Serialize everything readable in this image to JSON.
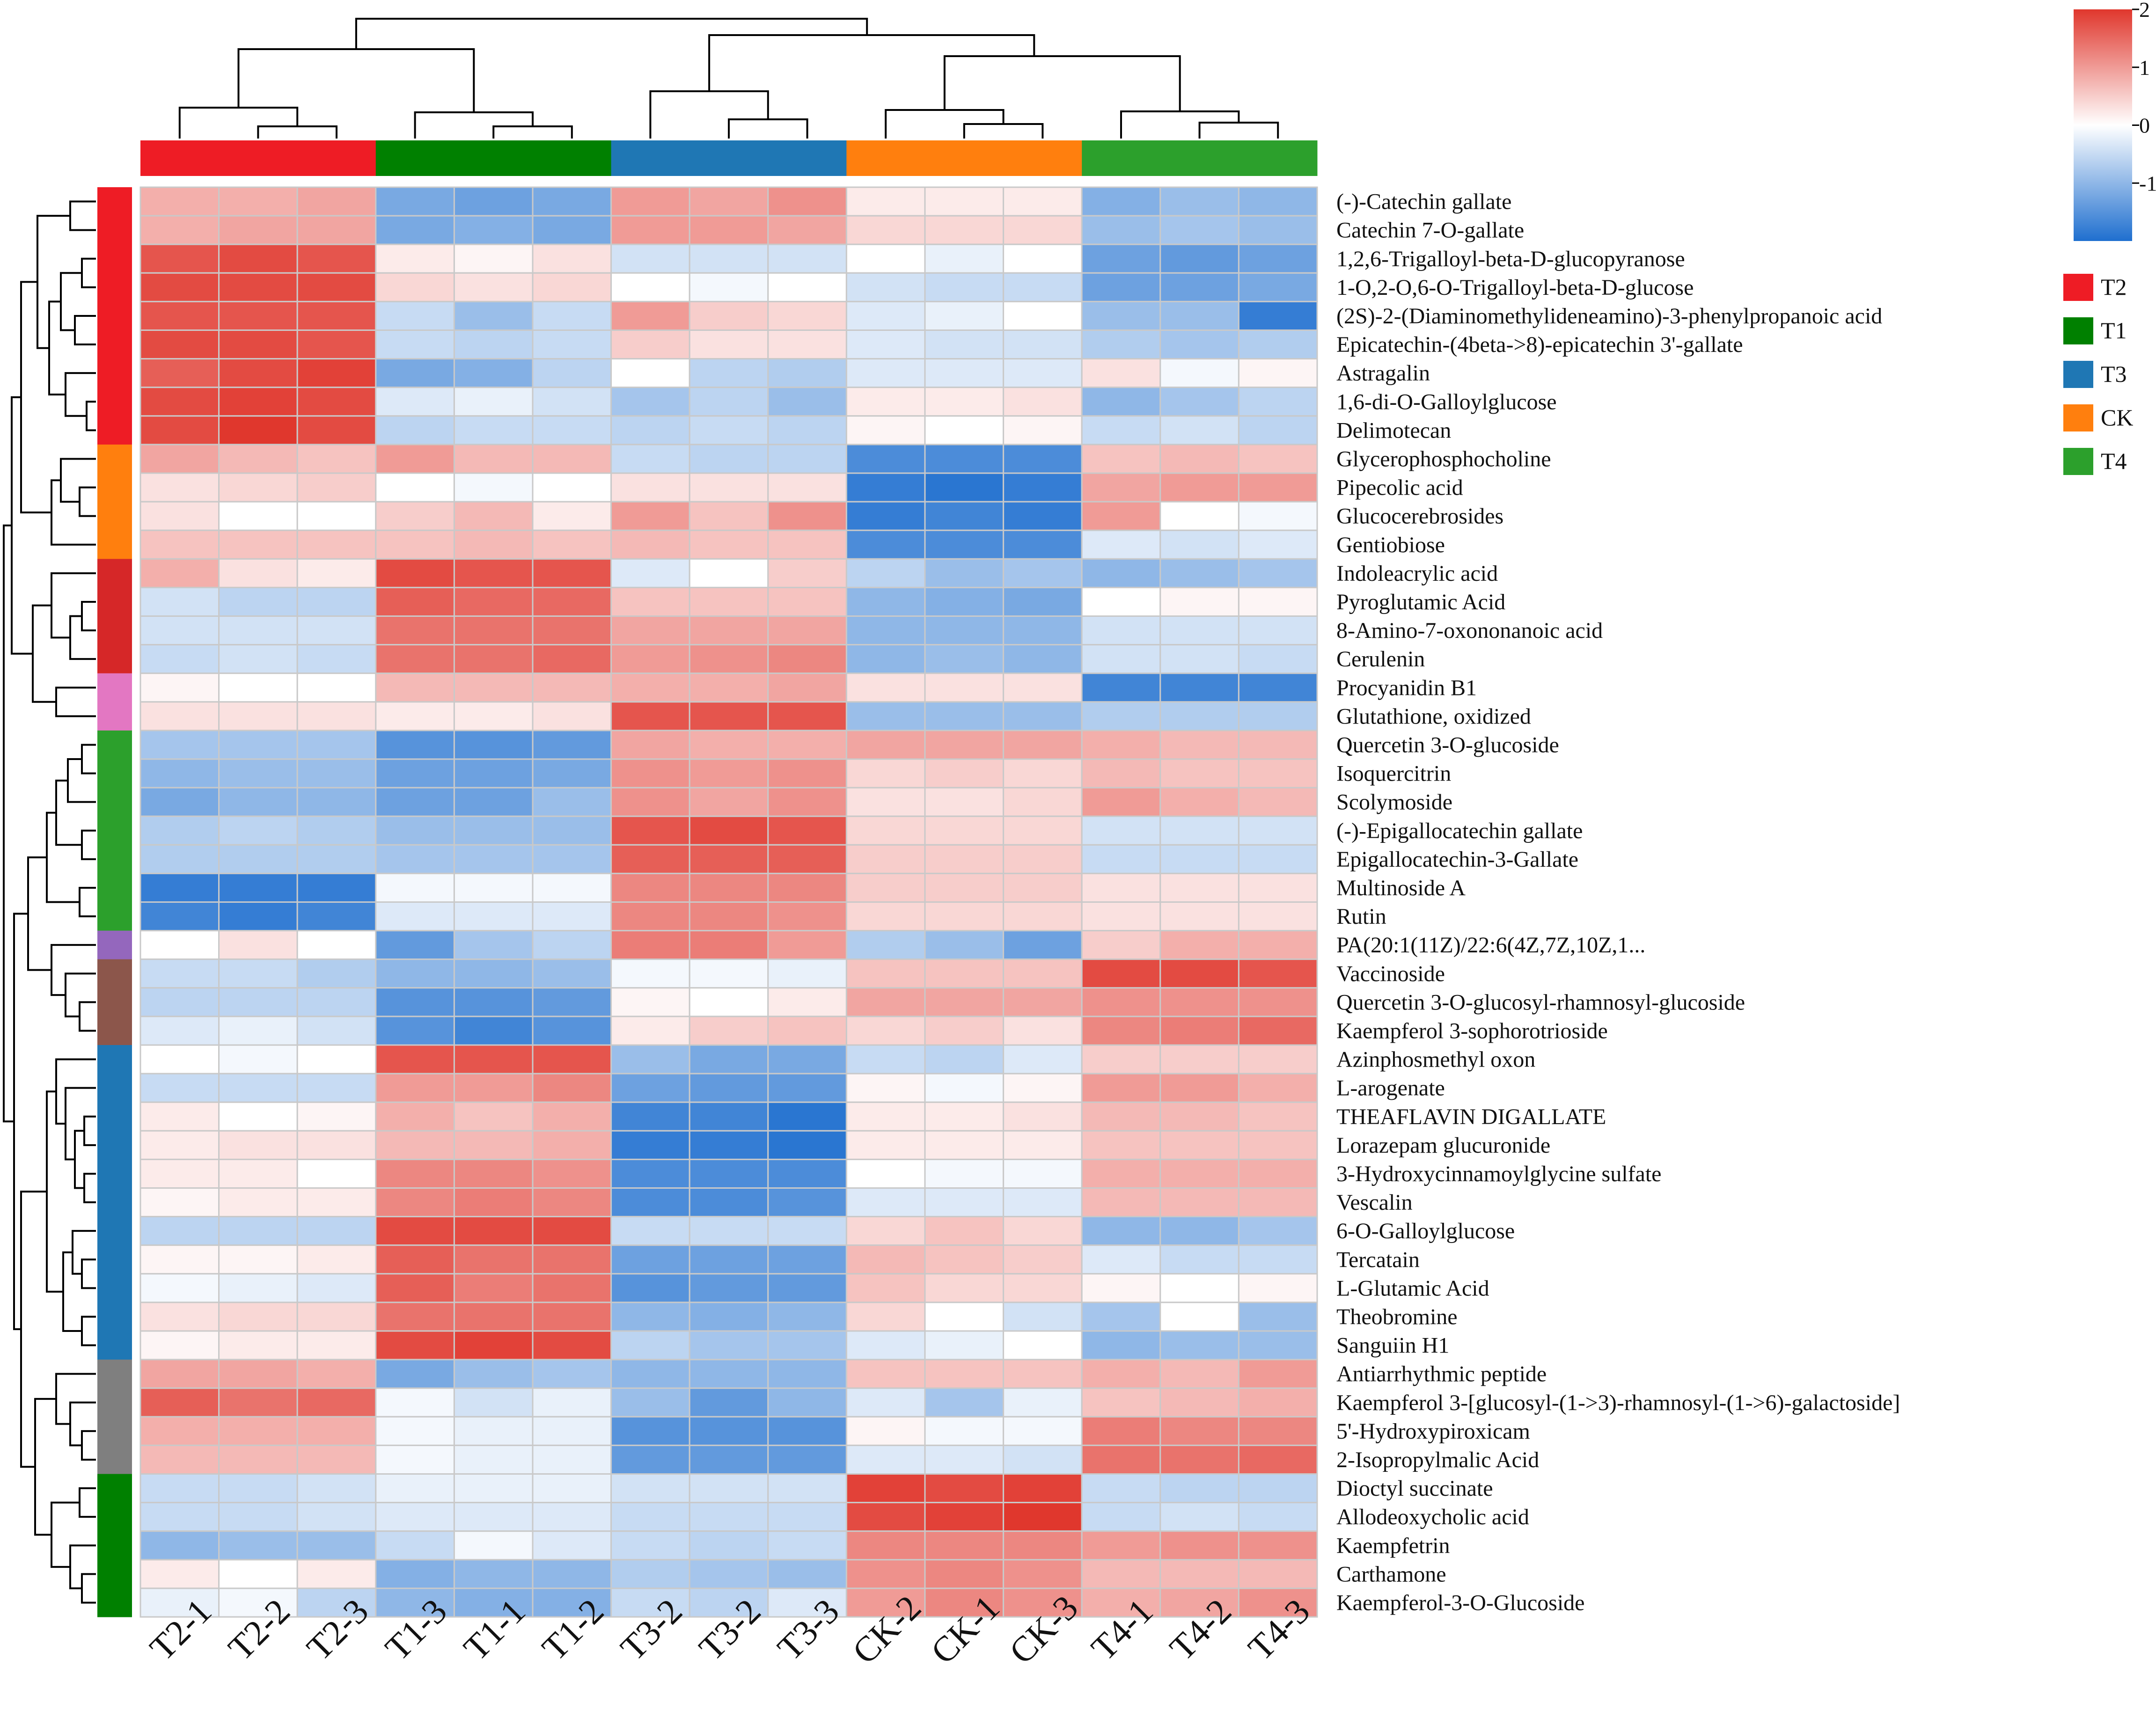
{
  "chart_data": {
    "type": "heatmap",
    "title": "",
    "columns": [
      "T2-1",
      "T2-2",
      "T2-3",
      "T1-3",
      "T1-1",
      "T1-2",
      "T3-2",
      "T3-2",
      "T3-3",
      "CK-2",
      "CK-1",
      "CK-3",
      "T4-1",
      "T4-2",
      "T4-3"
    ],
    "column_groups": [
      "T2",
      "T2",
      "T2",
      "T1",
      "T1",
      "T1",
      "T3",
      "T3",
      "T3",
      "CK",
      "CK",
      "CK",
      "T4",
      "T4",
      "T4"
    ],
    "rows": [
      "(-)-Catechin gallate",
      "Catechin 7-O-gallate",
      "1,2,6-Trigalloyl-beta-D-glucopyranose",
      "1-O,2-O,6-O-Trigalloyl-beta-D-glucose",
      "(2S)-2-(Diaminomethylideneamino)-3-phenylpropanoic acid",
      "Epicatechin-(4beta->8)-epicatechin 3'-gallate",
      "Astragalin",
      "1,6-di-O-Galloylglucose",
      "Delimotecan",
      "Glycerophosphocholine",
      "Pipecolic acid",
      "Glucocerebrosides",
      "Gentiobiose",
      "Indoleacrylic acid",
      "Pyroglutamic Acid",
      "8-Amino-7-oxononanoic acid",
      "Cerulenin",
      "Procyanidin B1",
      "Glutathione, oxidized",
      "Quercetin 3-O-glucoside",
      "Isoquercitrin",
      "Scolymoside",
      "(-)-Epigallocatechin gallate",
      "Epigallocatechin-3-Gallate",
      "Multinoside A",
      "Rutin",
      "PA(20:1(11Z)/22:6(4Z,7Z,10Z,1...",
      "Vaccinoside",
      "Quercetin 3-O-glucosyl-rhamnosyl-glucoside",
      "Kaempferol 3-sophorotrioside",
      "Azinphosmethyl oxon",
      "L-arogenate",
      "THEAFLAVIN DIGALLATE",
      "Lorazepam glucuronide",
      "3-Hydroxycinnamoylglycine sulfate",
      "Vescalin",
      "6-O-Galloylglucose",
      "Tercatain",
      "L-Glutamic Acid",
      "Theobromine",
      "Sanguiin H1",
      "Antiarrhythmic peptide",
      "Kaempferol 3-[glucosyl-(1->3)-rhamnosyl-(1->6)-galactoside]",
      "5'-Hydroxypiroxicam",
      "2-Isopropylmalic Acid",
      "Dioctyl succinate",
      "Allodeoxycholic acid",
      "Kaempfetrin",
      "Carthamone",
      "Kaempferol-3-O-Glucoside"
    ],
    "row_cluster_colors": [
      "#ee1c25",
      "#ee1c25",
      "#ee1c25",
      "#ee1c25",
      "#ee1c25",
      "#ee1c25",
      "#ee1c25",
      "#ee1c25",
      "#ee1c25",
      "#ff7f0e",
      "#ff7f0e",
      "#ff7f0e",
      "#ff7f0e",
      "#d62728",
      "#d62728",
      "#d62728",
      "#d62728",
      "#e377c2",
      "#e377c2",
      "#2ca02c",
      "#2ca02c",
      "#2ca02c",
      "#2ca02c",
      "#2ca02c",
      "#2ca02c",
      "#2ca02c",
      "#9467bd",
      "#8c564b",
      "#8c564b",
      "#8c564b",
      "#1f77b4",
      "#1f77b4",
      "#1f77b4",
      "#1f77b4",
      "#1f77b4",
      "#1f77b4",
      "#1f77b4",
      "#1f77b4",
      "#1f77b4",
      "#1f77b4",
      "#1f77b4",
      "#7f7f7f",
      "#7f7f7f",
      "#7f7f7f",
      "#7f7f7f",
      "#008000",
      "#008000",
      "#008000",
      "#008000",
      "#008000"
    ],
    "values": [
      [
        0.8,
        0.8,
        0.9,
        -1.2,
        -1.3,
        -1.2,
        1.0,
        0.9,
        1.1,
        0.2,
        0.2,
        0.2,
        -1.1,
        -0.9,
        -1.0
      ],
      [
        0.8,
        0.9,
        0.9,
        -1.2,
        -1.1,
        -1.2,
        1.0,
        1.0,
        0.9,
        0.4,
        0.4,
        0.4,
        -0.9,
        -0.8,
        -0.9
      ],
      [
        1.7,
        1.8,
        1.7,
        0.2,
        0.1,
        0.3,
        -0.4,
        -0.4,
        -0.4,
        0.0,
        -0.2,
        0.0,
        -1.3,
        -1.4,
        -1.3
      ],
      [
        1.8,
        1.8,
        1.8,
        0.4,
        0.3,
        0.4,
        0.0,
        -0.1,
        0.0,
        -0.4,
        -0.5,
        -0.5,
        -1.3,
        -1.3,
        -1.2
      ],
      [
        1.7,
        1.7,
        1.7,
        -0.5,
        -0.9,
        -0.5,
        1.0,
        0.5,
        0.4,
        -0.3,
        -0.2,
        0.0,
        -0.9,
        -0.9,
        -1.8
      ],
      [
        1.8,
        1.8,
        1.7,
        -0.5,
        -0.6,
        -0.5,
        0.5,
        0.3,
        0.3,
        -0.3,
        -0.4,
        -0.4,
        -0.7,
        -0.8,
        -0.7
      ],
      [
        1.6,
        1.8,
        1.9,
        -1.2,
        -1.1,
        -0.6,
        0.0,
        -0.6,
        -0.7,
        -0.3,
        -0.3,
        -0.3,
        0.3,
        -0.1,
        0.1
      ],
      [
        1.8,
        1.9,
        1.8,
        -0.3,
        -0.2,
        -0.4,
        -0.8,
        -0.6,
        -0.9,
        0.2,
        0.2,
        0.3,
        -1.0,
        -0.8,
        -0.6
      ],
      [
        1.8,
        2.0,
        1.8,
        -0.6,
        -0.5,
        -0.5,
        -0.6,
        -0.5,
        -0.6,
        0.1,
        0.0,
        0.1,
        -0.5,
        -0.4,
        -0.6
      ],
      [
        0.9,
        0.7,
        0.6,
        1.0,
        0.7,
        0.7,
        -0.5,
        -0.6,
        -0.6,
        -1.6,
        -1.6,
        -1.6,
        0.6,
        0.7,
        0.6
      ],
      [
        0.3,
        0.4,
        0.5,
        0.0,
        -0.1,
        0.0,
        0.3,
        0.3,
        0.3,
        -1.8,
        -1.9,
        -1.8,
        0.9,
        1.0,
        1.0
      ],
      [
        0.3,
        0.0,
        0.0,
        0.5,
        0.7,
        0.2,
        1.0,
        0.6,
        1.1,
        -1.8,
        -1.7,
        -1.8,
        1.0,
        0.0,
        -0.1
      ],
      [
        0.6,
        0.6,
        0.6,
        0.6,
        0.7,
        0.6,
        0.7,
        0.6,
        0.6,
        -1.6,
        -1.6,
        -1.6,
        -0.3,
        -0.4,
        -0.3
      ],
      [
        0.8,
        0.3,
        0.2,
        1.8,
        1.7,
        1.7,
        -0.3,
        0.0,
        0.5,
        -0.6,
        -0.9,
        -0.8,
        -1.0,
        -0.9,
        -0.8
      ],
      [
        -0.4,
        -0.6,
        -0.6,
        1.6,
        1.5,
        1.5,
        0.6,
        0.6,
        0.6,
        -1.0,
        -1.1,
        -1.2,
        0.0,
        0.1,
        0.1
      ],
      [
        -0.4,
        -0.4,
        -0.4,
        1.4,
        1.4,
        1.4,
        0.9,
        0.9,
        0.9,
        -1.0,
        -1.0,
        -1.0,
        -0.4,
        -0.4,
        -0.4
      ],
      [
        -0.5,
        -0.4,
        -0.5,
        1.4,
        1.4,
        1.5,
        1.0,
        1.1,
        1.2,
        -1.0,
        -0.9,
        -1.0,
        -0.4,
        -0.4,
        -0.5
      ],
      [
        0.1,
        0.0,
        0.0,
        0.7,
        0.7,
        0.7,
        0.8,
        0.8,
        0.9,
        0.3,
        0.3,
        0.3,
        -1.7,
        -1.7,
        -1.7
      ],
      [
        0.3,
        0.3,
        0.3,
        0.2,
        0.2,
        0.3,
        1.7,
        1.7,
        1.7,
        -0.9,
        -0.9,
        -0.9,
        -0.7,
        -0.7,
        -0.7
      ],
      [
        -0.8,
        -0.8,
        -0.8,
        -1.5,
        -1.5,
        -1.4,
        0.9,
        0.8,
        0.8,
        0.9,
        0.9,
        0.9,
        0.8,
        0.7,
        0.7
      ],
      [
        -1.0,
        -0.9,
        -0.9,
        -1.3,
        -1.3,
        -1.2,
        1.1,
        1.0,
        1.1,
        0.4,
        0.5,
        0.4,
        0.7,
        0.6,
        0.6
      ],
      [
        -1.2,
        -1.0,
        -1.0,
        -1.3,
        -1.3,
        -0.9,
        1.1,
        0.9,
        1.1,
        0.3,
        0.3,
        0.4,
        1.0,
        0.8,
        0.7
      ],
      [
        -0.7,
        -0.6,
        -0.7,
        -0.9,
        -0.9,
        -0.9,
        1.7,
        1.8,
        1.7,
        0.4,
        0.4,
        0.4,
        -0.4,
        -0.4,
        -0.4
      ],
      [
        -0.7,
        -0.7,
        -0.7,
        -0.8,
        -0.8,
        -0.8,
        1.6,
        1.6,
        1.6,
        0.5,
        0.5,
        0.5,
        -0.5,
        -0.5,
        -0.5
      ],
      [
        -1.8,
        -1.8,
        -1.8,
        -0.1,
        -0.1,
        -0.1,
        1.2,
        1.2,
        1.2,
        0.5,
        0.5,
        0.5,
        0.3,
        0.3,
        0.3
      ],
      [
        -1.7,
        -1.8,
        -1.7,
        -0.3,
        -0.3,
        -0.3,
        1.2,
        1.2,
        1.1,
        0.4,
        0.4,
        0.4,
        0.3,
        0.3,
        0.3
      ],
      [
        0.0,
        0.3,
        0.0,
        -1.4,
        -0.8,
        -0.6,
        1.3,
        1.3,
        1.0,
        -0.7,
        -0.9,
        -1.3,
        0.5,
        0.8,
        0.8
      ],
      [
        -0.5,
        -0.5,
        -0.7,
        -1.0,
        -1.0,
        -0.9,
        -0.1,
        -0.1,
        -0.2,
        0.6,
        0.6,
        0.6,
        1.8,
        1.8,
        1.7
      ],
      [
        -0.6,
        -0.6,
        -0.6,
        -1.5,
        -1.5,
        -1.4,
        0.1,
        0.0,
        0.2,
        0.9,
        0.9,
        0.9,
        1.1,
        1.1,
        1.1
      ],
      [
        -0.3,
        -0.2,
        -0.4,
        -1.5,
        -1.7,
        -1.5,
        0.2,
        0.5,
        0.6,
        0.4,
        0.5,
        0.3,
        1.2,
        1.3,
        1.5
      ],
      [
        0.0,
        -0.1,
        0.0,
        1.7,
        1.7,
        1.7,
        -0.9,
        -1.2,
        -1.2,
        -0.5,
        -0.6,
        -0.3,
        0.5,
        0.5,
        0.5
      ],
      [
        -0.5,
        -0.5,
        -0.5,
        1.0,
        1.0,
        1.2,
        -1.3,
        -1.4,
        -1.4,
        0.1,
        -0.1,
        0.1,
        1.0,
        1.0,
        0.8
      ],
      [
        0.2,
        0.0,
        0.1,
        0.8,
        0.6,
        0.8,
        -1.7,
        -1.7,
        -1.9,
        0.2,
        0.2,
        0.3,
        0.7,
        0.7,
        0.6
      ],
      [
        0.2,
        0.3,
        0.3,
        0.7,
        0.7,
        0.8,
        -1.8,
        -1.8,
        -1.9,
        0.2,
        0.2,
        0.2,
        0.6,
        0.6,
        0.6
      ],
      [
        0.2,
        0.2,
        0.0,
        1.2,
        1.2,
        1.1,
        -1.6,
        -1.6,
        -1.6,
        0.0,
        -0.1,
        -0.1,
        0.8,
        0.8,
        0.8
      ],
      [
        0.1,
        0.2,
        0.2,
        1.2,
        1.3,
        1.2,
        -1.6,
        -1.6,
        -1.5,
        -0.3,
        -0.3,
        -0.3,
        0.7,
        0.7,
        0.7
      ],
      [
        -0.6,
        -0.6,
        -0.6,
        1.8,
        1.8,
        1.8,
        -0.5,
        -0.5,
        -0.5,
        0.4,
        0.6,
        0.4,
        -1.0,
        -1.0,
        -0.8
      ],
      [
        0.1,
        0.1,
        0.2,
        1.6,
        1.4,
        1.4,
        -1.3,
        -1.3,
        -1.3,
        0.7,
        0.6,
        0.5,
        -0.3,
        -0.5,
        -0.5
      ],
      [
        -0.1,
        -0.2,
        -0.3,
        1.6,
        1.3,
        1.4,
        -1.5,
        -1.4,
        -1.4,
        0.6,
        0.4,
        0.4,
        0.1,
        0.0,
        0.1
      ],
      [
        0.3,
        0.4,
        0.4,
        1.4,
        1.4,
        1.4,
        -1.0,
        -1.1,
        -1.0,
        0.4,
        0.0,
        -0.4,
        -0.8,
        0.0,
        -0.9
      ],
      [
        0.1,
        0.2,
        0.2,
        1.8,
        1.9,
        1.8,
        -0.6,
        -0.8,
        -0.8,
        -0.3,
        -0.2,
        0.0,
        -1.0,
        -0.9,
        -0.9
      ],
      [
        0.9,
        0.9,
        0.8,
        -1.2,
        -0.9,
        -0.8,
        -1.0,
        -1.0,
        -1.0,
        0.6,
        0.6,
        0.6,
        0.8,
        0.7,
        1.0
      ],
      [
        1.6,
        1.4,
        1.5,
        -0.1,
        -0.4,
        -0.2,
        -0.9,
        -1.4,
        -1.0,
        -0.3,
        -0.8,
        -0.2,
        0.6,
        0.7,
        0.8
      ],
      [
        0.8,
        0.8,
        0.8,
        -0.1,
        -0.2,
        -0.2,
        -1.5,
        -1.5,
        -1.5,
        0.1,
        -0.1,
        -0.1,
        1.3,
        1.2,
        1.2
      ],
      [
        0.7,
        0.7,
        0.7,
        -0.1,
        -0.2,
        -0.2,
        -1.4,
        -1.4,
        -1.4,
        -0.3,
        -0.3,
        -0.4,
        1.4,
        1.4,
        1.5
      ],
      [
        -0.5,
        -0.5,
        -0.4,
        -0.2,
        -0.2,
        -0.2,
        -0.4,
        -0.4,
        -0.4,
        1.9,
        1.8,
        1.9,
        -0.5,
        -0.6,
        -0.6
      ],
      [
        -0.5,
        -0.5,
        -0.4,
        -0.3,
        -0.3,
        -0.3,
        -0.5,
        -0.5,
        -0.5,
        1.8,
        1.9,
        2.0,
        -0.5,
        -0.4,
        -0.5
      ],
      [
        -1.0,
        -0.9,
        -0.9,
        -0.5,
        -0.1,
        -0.3,
        -0.5,
        -0.6,
        -0.5,
        1.2,
        1.2,
        1.2,
        1.0,
        1.1,
        1.1
      ],
      [
        0.2,
        0.0,
        0.2,
        -1.1,
        -1.0,
        -1.0,
        -0.7,
        -0.8,
        -0.9,
        1.1,
        1.2,
        1.1,
        0.7,
        0.7,
        0.7
      ],
      [
        -0.2,
        -0.1,
        -0.6,
        -1.0,
        -1.1,
        -1.1,
        -0.5,
        -0.6,
        -0.3,
        1.0,
        1.2,
        1.1,
        0.8,
        0.9,
        1.1
      ]
    ],
    "color_scale": {
      "range": [
        -2,
        2
      ],
      "ticks": [
        "2",
        "1",
        "0",
        "-1"
      ],
      "low": "#1f6fcf",
      "mid": "#ffffff",
      "high": "#e0372d"
    },
    "legend": [
      {
        "label": "T2",
        "color": "#ee1c25"
      },
      {
        "label": "T1",
        "color": "#008000"
      },
      {
        "label": "T3",
        "color": "#1f77b4"
      },
      {
        "label": "CK",
        "color": "#ff7f0e"
      },
      {
        "label": "T4",
        "color": "#2ca02c"
      }
    ]
  }
}
